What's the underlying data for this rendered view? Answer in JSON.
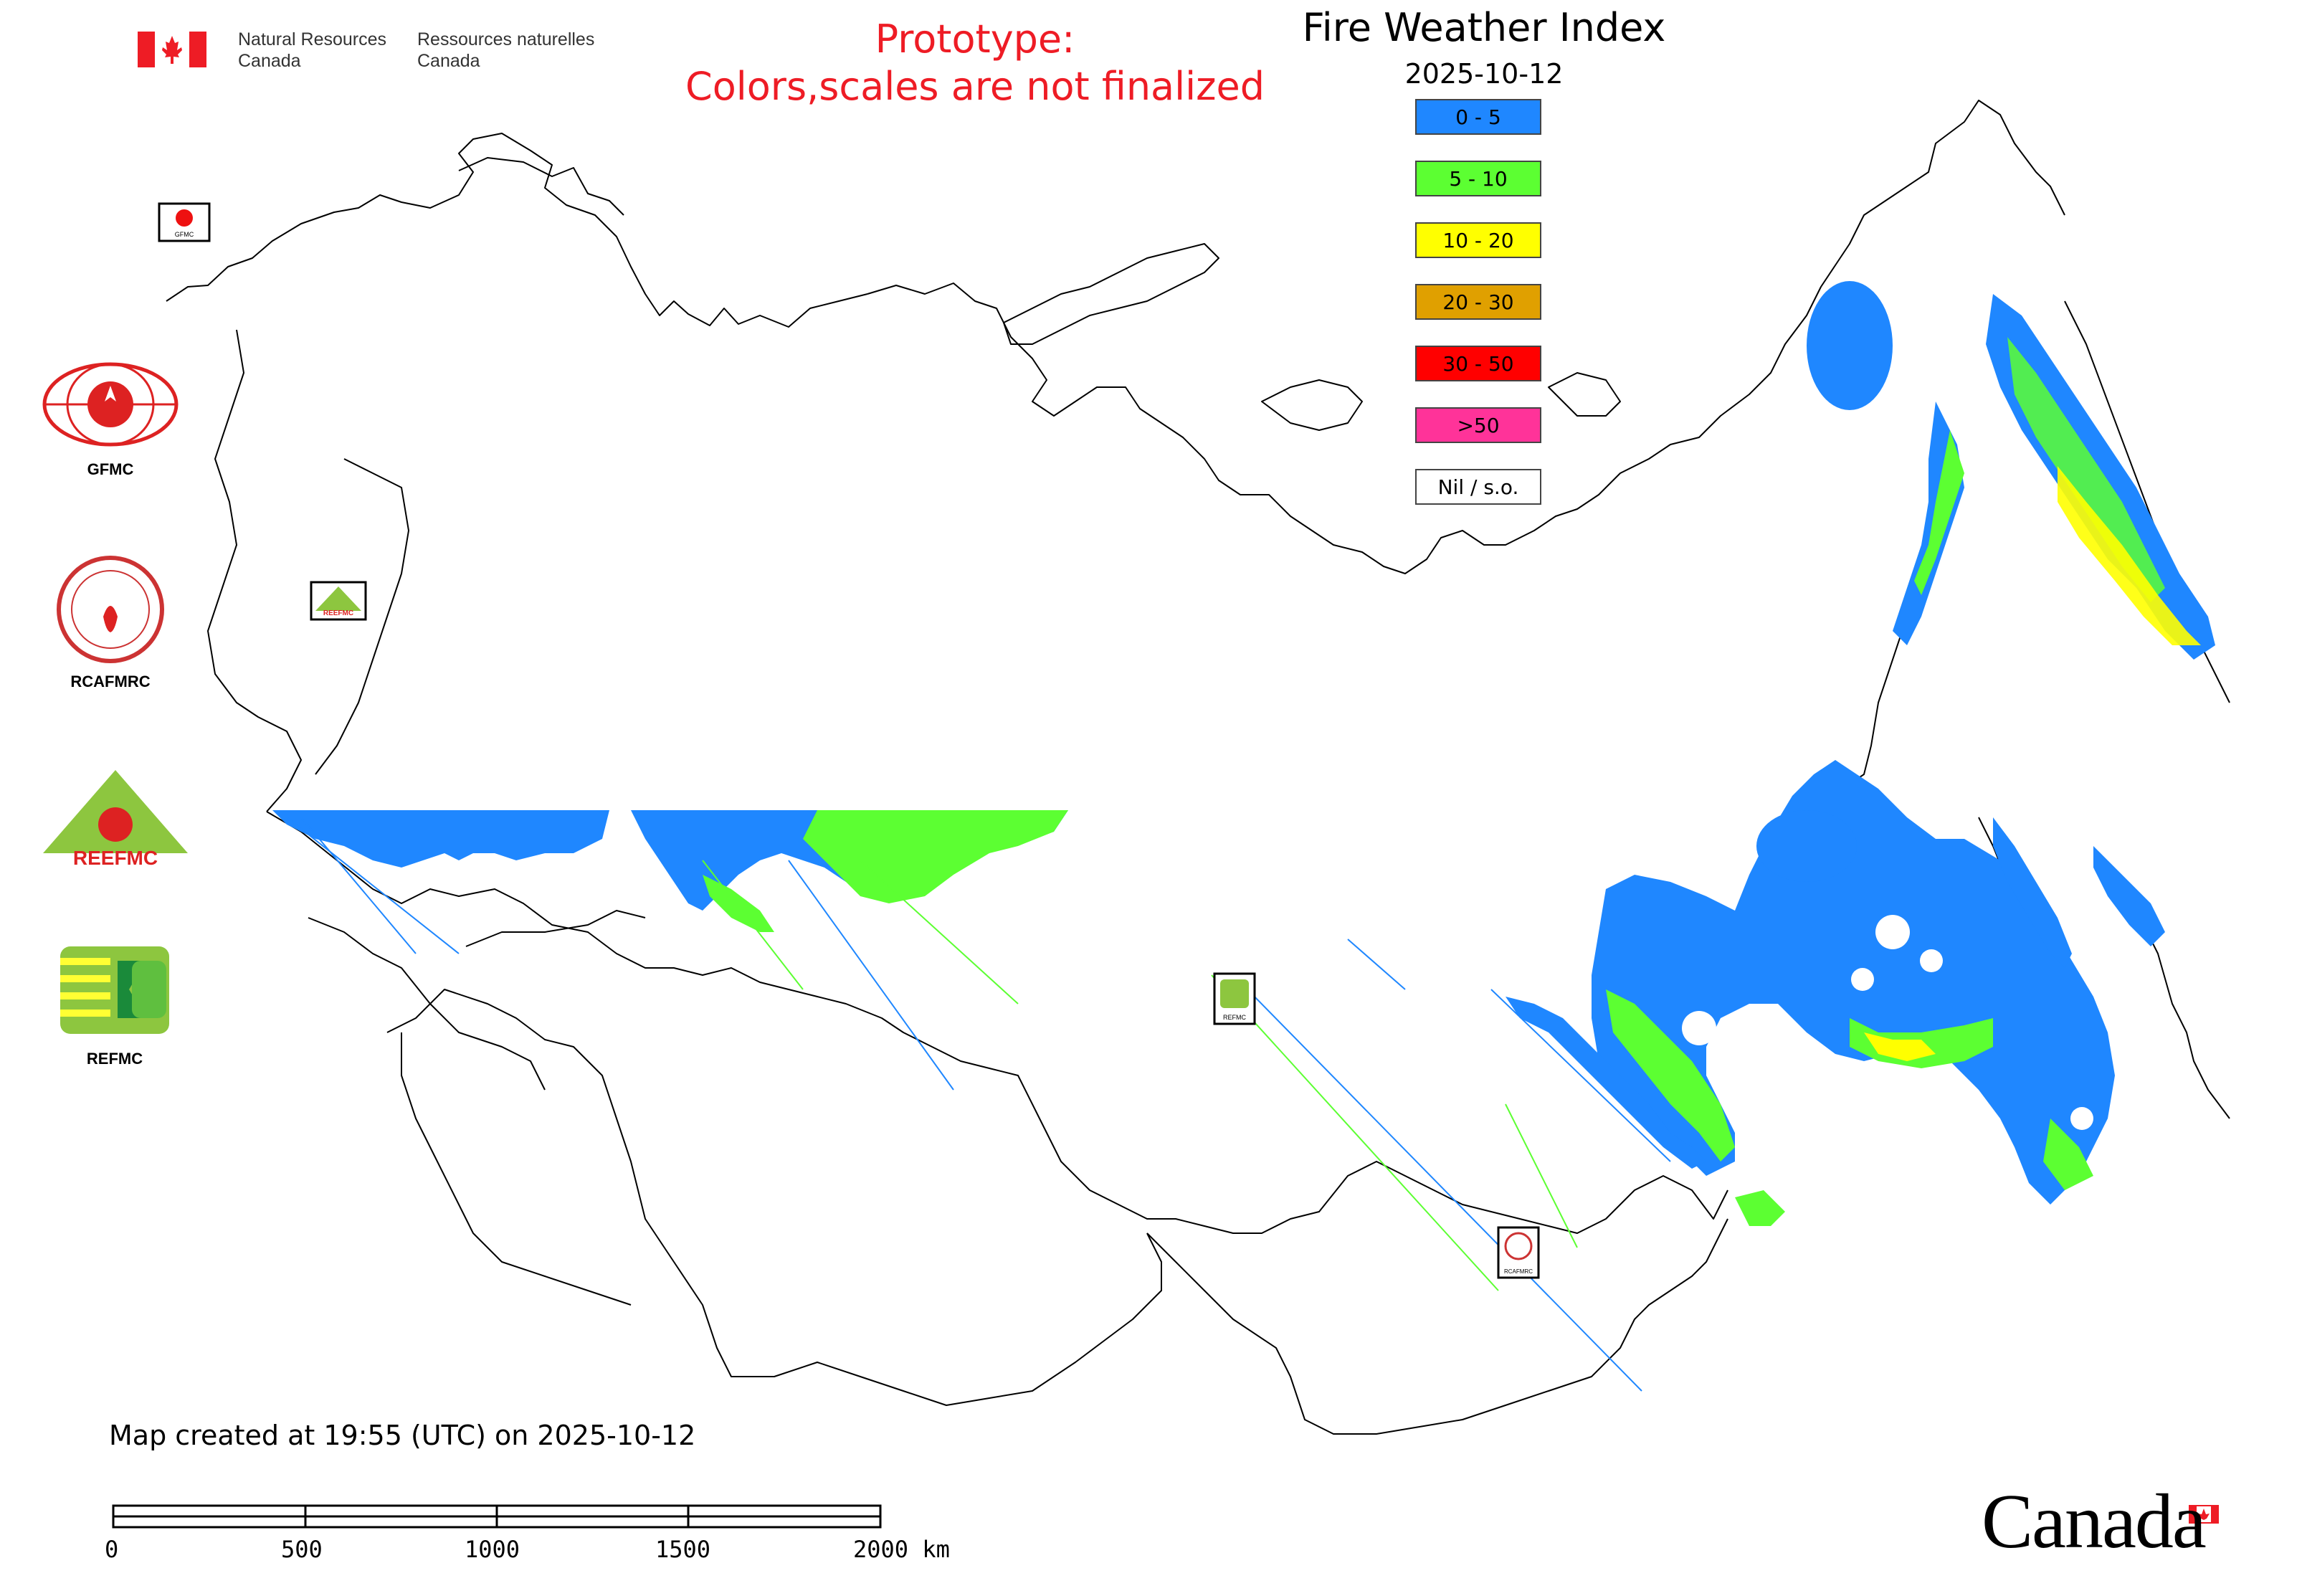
{
  "header": {
    "agency_en_line1": "Natural Resources",
    "agency_en_line2": "Canada",
    "agency_fr_line1": "Ressources naturelles",
    "agency_fr_line2": "Canada",
    "prototype_line1": "Prototype:",
    "prototype_line2": "Colors,scales are not finalized"
  },
  "map": {
    "title": "Fire Weather Index",
    "date": "2025-10-12",
    "created_note": "Map created at 19:55 (UTC) on 2025-10-12",
    "wordmark": "Canada"
  },
  "legend": [
    {
      "label": "0 - 5",
      "color": "#1f87ff"
    },
    {
      "label": "5 - 10",
      "color": "#5cff32"
    },
    {
      "label": "10 - 20",
      "color": "#ffff00"
    },
    {
      "label": "20 - 30",
      "color": "#e0a000"
    },
    {
      "label": "30 - 50",
      "color": "#ff0000"
    },
    {
      "label": ">50",
      "color": "#ff3399"
    },
    {
      "label": "Nil / s.o.",
      "color": "#ffffff"
    }
  ],
  "logos": {
    "gfmc": "GFMC",
    "rcafmrc": "RCAFMRC",
    "reefmc": "REEFMC",
    "refmc": "REFMC"
  },
  "map_markers": {
    "gfmc_marker": "GFMC",
    "reefmc_marker": "REEFMC",
    "refmc_marker": "REFMC",
    "rcafmrc_marker": "RCAFMRC"
  },
  "scale_bar": {
    "ticks": [
      "0",
      "500",
      "1000",
      "1500",
      "2000 km"
    ]
  },
  "icons": {
    "flag": "canada-flag-icon",
    "leaf": "maple-leaf-icon"
  }
}
